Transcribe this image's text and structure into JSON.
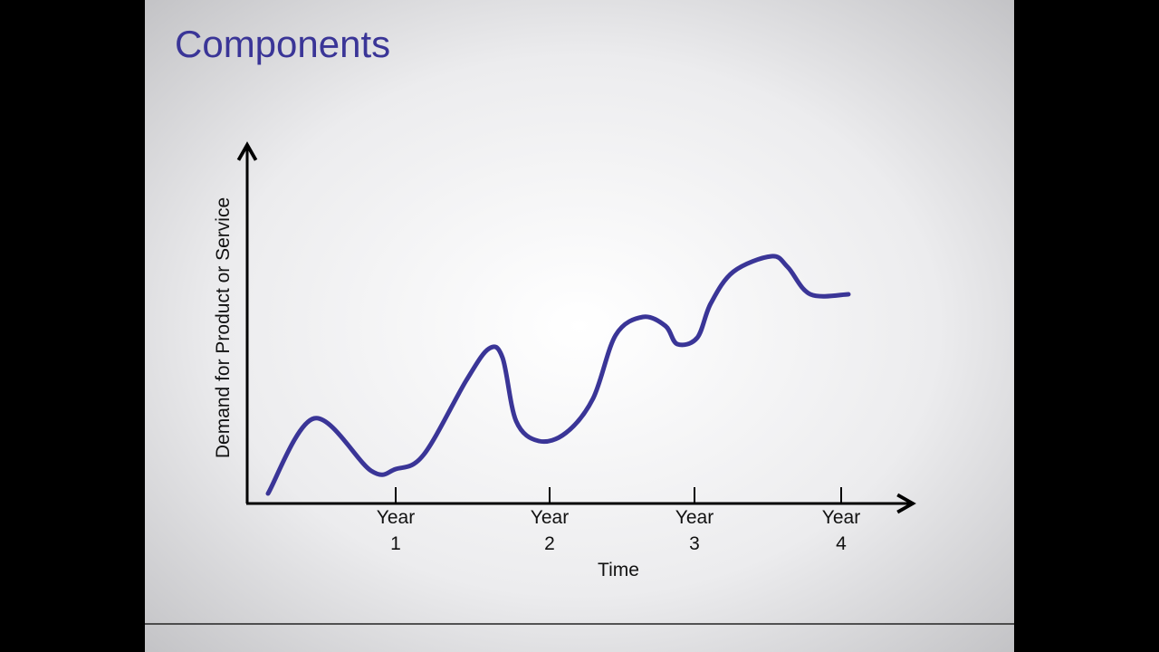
{
  "title": "Components",
  "diagram": {
    "y_label": "Demand for Product or Service",
    "x_label": "Time",
    "x_ticks": [
      {
        "line1": "Year",
        "line2": "1"
      },
      {
        "line1": "Year",
        "line2": "2"
      },
      {
        "line1": "Year",
        "line2": "3"
      },
      {
        "line1": "Year",
        "line2": "4"
      }
    ]
  }
}
